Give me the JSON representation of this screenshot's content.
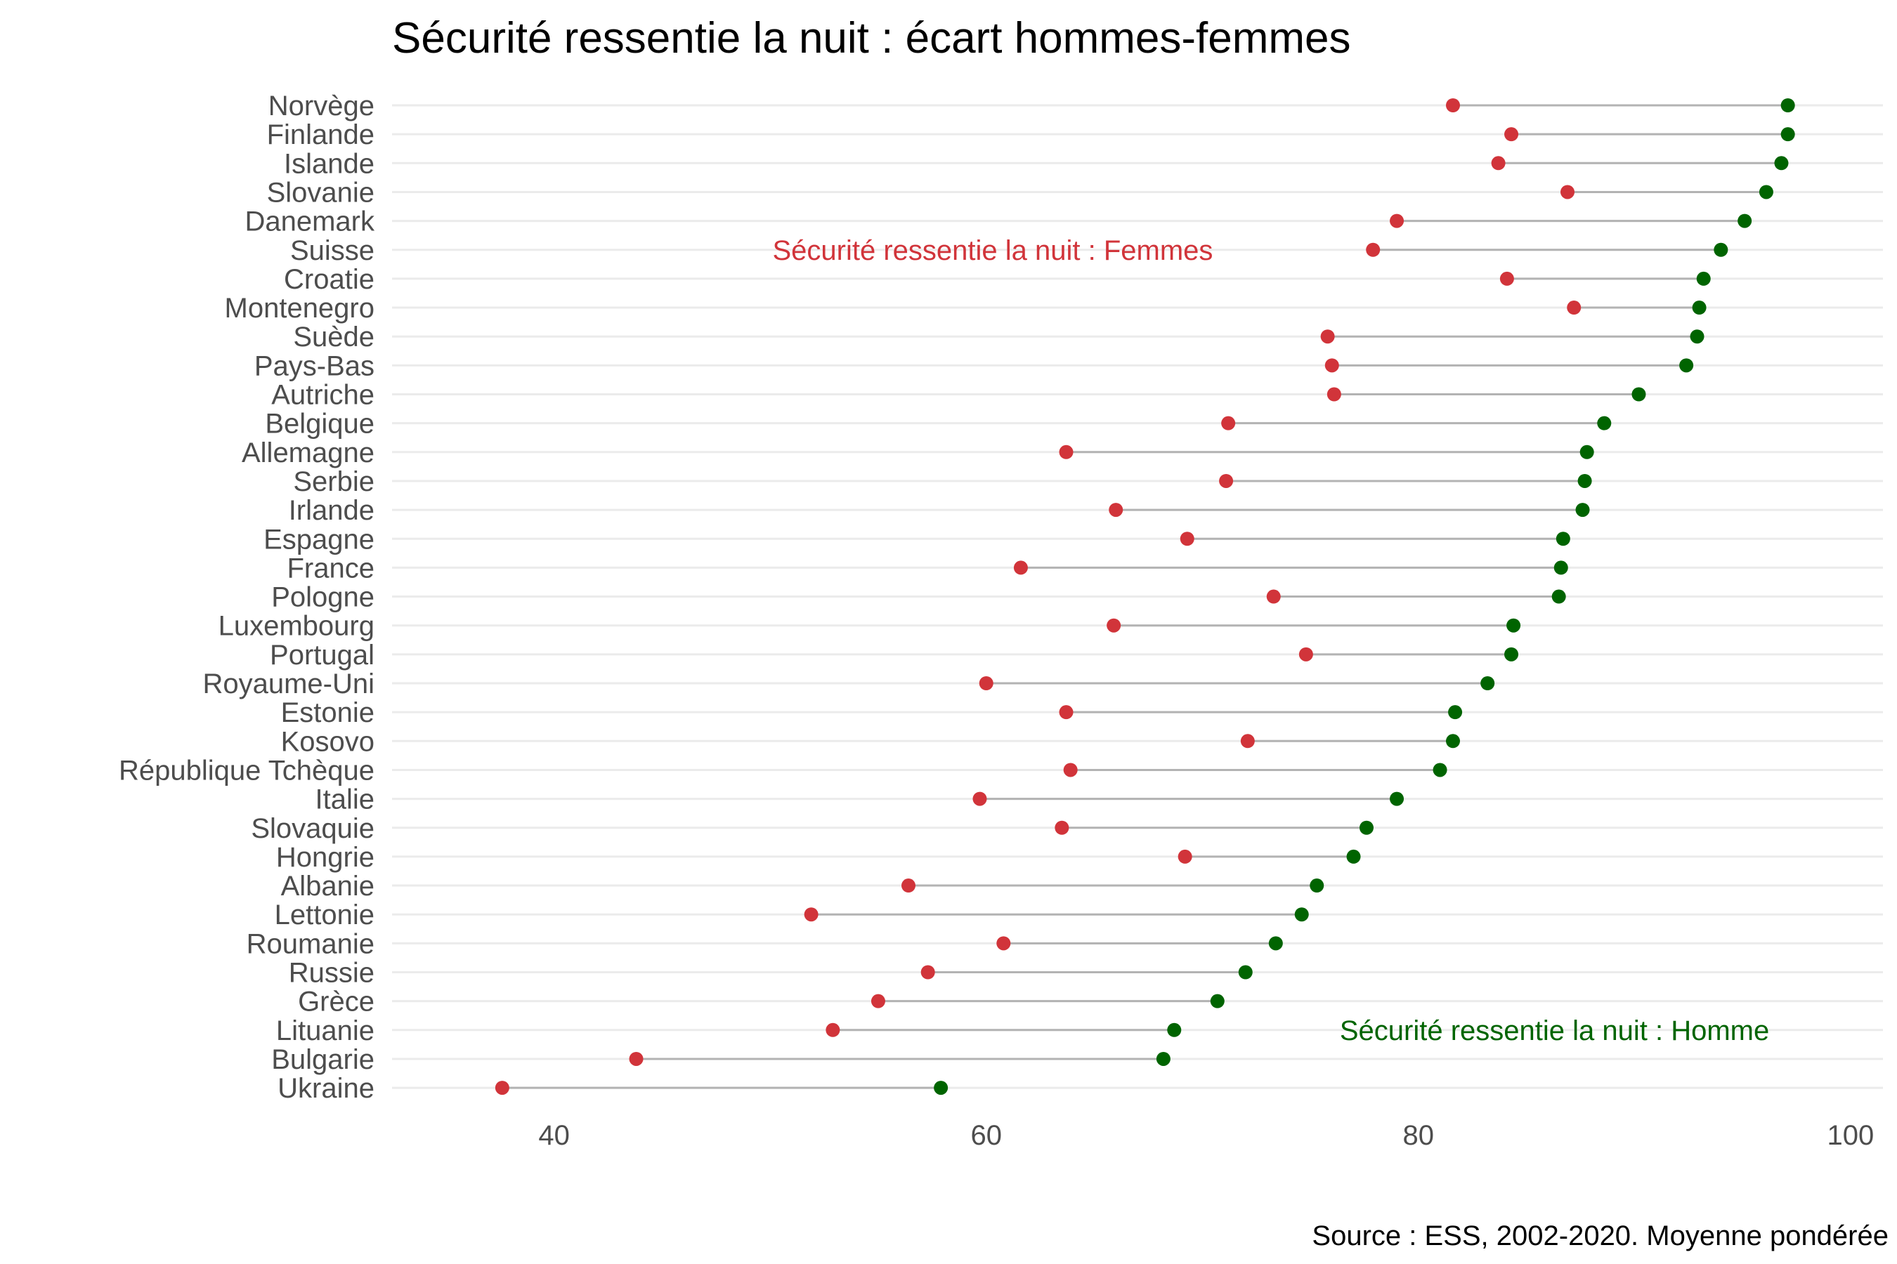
{
  "chart_data": {
    "type": "dumbbell",
    "title": "Sécurité ressentie la nuit : écart hommes-femmes",
    "caption": "Source : ESS, 2002-2020. Moyenne pondérée",
    "xlabel": "",
    "ylabel": "",
    "xlim": [
      32.5,
      101.5
    ],
    "xticks": [
      40,
      60,
      80,
      100
    ],
    "grid": "horizontal",
    "colors": {
      "femmes": "#d1343a",
      "hommes": "#006400",
      "segment": "#b3b3b3",
      "grid": "#ebebeb"
    },
    "annotations": [
      {
        "key": "femmes",
        "text": "Sécurité ressentie la nuit : Femmes",
        "x": 60.3,
        "y": "Suisse"
      },
      {
        "key": "hommes",
        "text": "Sécurité ressentie la nuit : Homme",
        "x": 86.3,
        "y": "Lituanie"
      }
    ],
    "series": [
      {
        "name": "Femmes",
        "key": "femmes"
      },
      {
        "name": "Hommes",
        "key": "hommes"
      }
    ],
    "categories": [
      "Norvège",
      "Finlande",
      "Islande",
      "Slovanie",
      "Danemark",
      "Suisse",
      "Croatie",
      "Montenegro",
      "Suède",
      "Pays-Bas",
      "Autriche",
      "Belgique",
      "Allemagne",
      "Serbie",
      "Irlande",
      "Espagne",
      "France",
      "Pologne",
      "Luxembourg",
      "Portugal",
      "Royaume-Uni",
      "Estonie",
      "Kosovo",
      "République Tchèque",
      "Italie",
      "Slovaquie",
      "Hongrie",
      "Albanie",
      "Lettonie",
      "Roumanie",
      "Russie",
      "Grèce",
      "Lituanie",
      "Bulgarie",
      "Ukraine"
    ],
    "femmes": [
      81.6,
      84.3,
      83.7,
      86.9,
      79.0,
      77.9,
      84.1,
      87.2,
      75.8,
      76.0,
      76.1,
      71.2,
      63.7,
      71.1,
      66.0,
      69.3,
      61.6,
      73.3,
      65.9,
      74.8,
      60.0,
      63.7,
      72.1,
      63.9,
      59.7,
      63.5,
      69.2,
      56.4,
      51.9,
      60.8,
      57.3,
      55.0,
      52.9,
      43.8,
      37.6
    ],
    "hommes": [
      97.1,
      97.1,
      96.8,
      96.1,
      95.1,
      94.0,
      93.2,
      93.0,
      92.9,
      92.4,
      90.2,
      88.6,
      87.8,
      87.7,
      87.6,
      86.7,
      86.6,
      86.5,
      84.4,
      84.3,
      83.2,
      81.7,
      81.6,
      81.0,
      79.0,
      77.6,
      77.0,
      75.3,
      74.6,
      73.4,
      72.0,
      70.7,
      68.7,
      68.2,
      57.9
    ]
  }
}
